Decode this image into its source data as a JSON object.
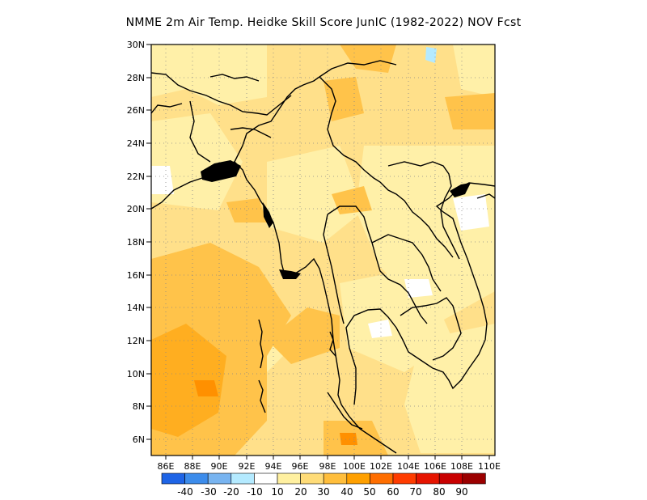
{
  "title": "NMME  2m Air Temp. Heidke Skill Score JunIC (1982-2022) NOV Fcst",
  "map": {
    "lat_labels": [
      "30N",
      "28N",
      "26N",
      "24N",
      "22N",
      "20N",
      "18N",
      "16N",
      "14N",
      "12N",
      "10N",
      "8N",
      "6N"
    ],
    "lon_labels": [
      "86E",
      "88E",
      "90E",
      "92E",
      "94E",
      "96E",
      "98E",
      "100E",
      "102E",
      "104E",
      "106E",
      "108E",
      "110E"
    ],
    "grid": "dotted"
  },
  "colorbar": {
    "labels": [
      "-40",
      "-30",
      "-20",
      "-10",
      "10",
      "20",
      "30",
      "40",
      "50",
      "60",
      "70",
      "80",
      "90"
    ],
    "colors": [
      "#1e64e6",
      "#3c8ceb",
      "#78b4f0",
      "#b4eaff",
      "#ffffff",
      "#fff0a0",
      "#ffdc78",
      "#ffbe3c",
      "#ffa000",
      "#ff6e00",
      "#ff3c00",
      "#e61400",
      "#c80000",
      "#9b0000"
    ]
  },
  "colors": {
    "land_outline": "#000000",
    "grid": "#888888"
  }
}
